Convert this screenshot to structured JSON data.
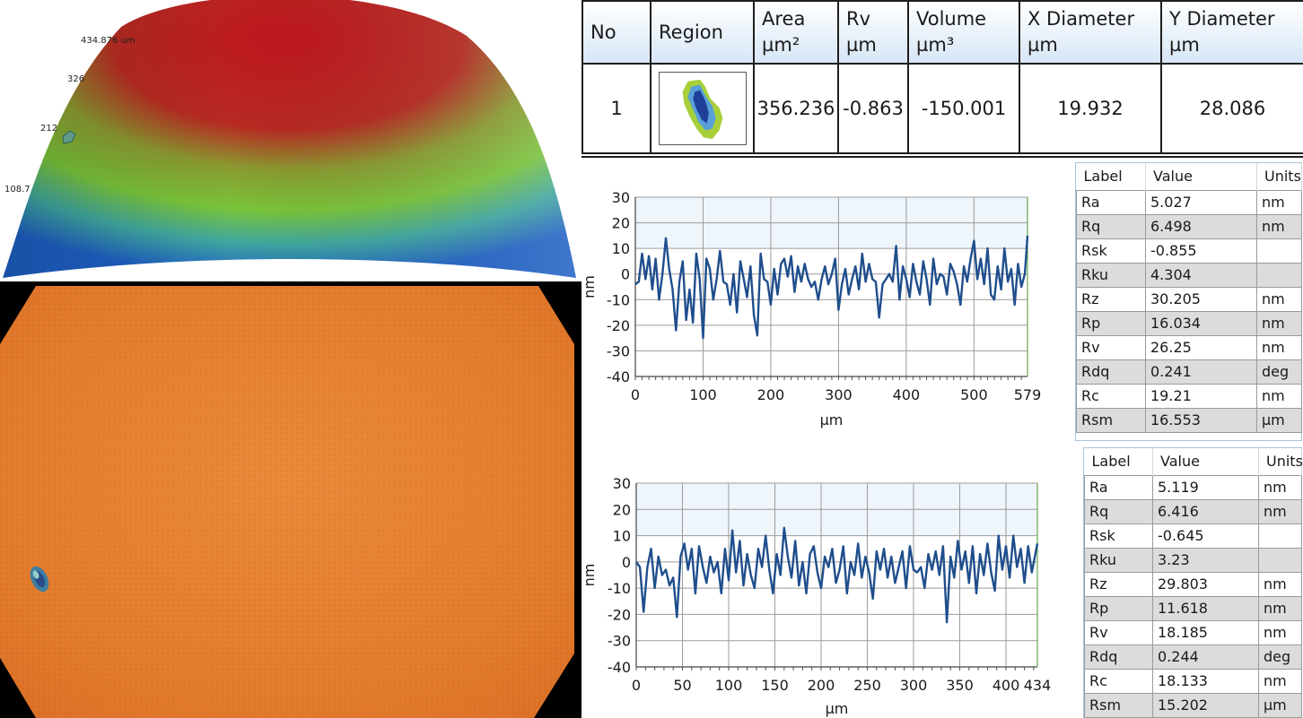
{
  "view3d": {
    "axis_labels": [
      "434.876 um",
      "326",
      "212",
      "108.7"
    ]
  },
  "region_table": {
    "headers": [
      {
        "line1": "No",
        "line2": ""
      },
      {
        "line1": "Region",
        "line2": ""
      },
      {
        "line1": "Area",
        "line2": "µm²"
      },
      {
        "line1": "Rv",
        "line2": "µm"
      },
      {
        "line1": "Volume",
        "line2": "µm³"
      },
      {
        "line1": "X Diameter",
        "line2": "µm"
      },
      {
        "line1": "Y Diameter",
        "line2": "µm"
      }
    ],
    "row": {
      "no": "1",
      "area": "356.236",
      "rv": "-0.863",
      "volume": "-150.001",
      "x_diameter": "19.932",
      "y_diameter": "28.086"
    }
  },
  "profiles": [
    {
      "xlabel": "µm",
      "ylabel": "nm",
      "ylim": [
        -40,
        30
      ],
      "yticks": [
        "30",
        "20",
        "10",
        "0",
        "-10",
        "-20",
        "-30",
        "-40"
      ],
      "xlim": [
        0,
        579
      ],
      "xticks": [
        "0",
        "100",
        "200",
        "300",
        "400",
        "500",
        "579"
      ],
      "xtick_values": [
        0,
        100,
        200,
        300,
        400,
        500,
        579
      ],
      "stats": {
        "headers": [
          "Label",
          "Value",
          "Units"
        ],
        "rows": [
          {
            "label": "Ra",
            "value": "5.027",
            "unit": "nm"
          },
          {
            "label": "Rq",
            "value": "6.498",
            "unit": "nm"
          },
          {
            "label": "Rsk",
            "value": "-0.855",
            "unit": ""
          },
          {
            "label": "Rku",
            "value": "4.304",
            "unit": ""
          },
          {
            "label": "Rz",
            "value": "30.205",
            "unit": "nm"
          },
          {
            "label": "Rp",
            "value": "16.034",
            "unit": "nm"
          },
          {
            "label": "Rv",
            "value": "26.25",
            "unit": "nm"
          },
          {
            "label": "Rdq",
            "value": "0.241",
            "unit": "deg"
          },
          {
            "label": "Rc",
            "value": "19.21",
            "unit": "nm"
          },
          {
            "label": "Rsm",
            "value": "16.553",
            "unit": "µm"
          }
        ]
      }
    },
    {
      "xlabel": "µm",
      "ylabel": "nm",
      "ylim": [
        -40,
        30
      ],
      "yticks": [
        "30",
        "20",
        "10",
        "0",
        "-10",
        "-20",
        "-30",
        "-40"
      ],
      "xlim": [
        0,
        434
      ],
      "xticks": [
        "0",
        "50",
        "100",
        "150",
        "200",
        "250",
        "300",
        "350",
        "400",
        "434"
      ],
      "xtick_values": [
        0,
        50,
        100,
        150,
        200,
        250,
        300,
        350,
        400,
        434
      ],
      "stats": {
        "headers": [
          "Label",
          "Value",
          "Units"
        ],
        "rows": [
          {
            "label": "Ra",
            "value": "5.119",
            "unit": "nm"
          },
          {
            "label": "Rq",
            "value": "6.416",
            "unit": "nm"
          },
          {
            "label": "Rsk",
            "value": "-0.645",
            "unit": ""
          },
          {
            "label": "Rku",
            "value": "3.23",
            "unit": ""
          },
          {
            "label": "Rz",
            "value": "29.803",
            "unit": "nm"
          },
          {
            "label": "Rp",
            "value": "11.618",
            "unit": "nm"
          },
          {
            "label": "Rv",
            "value": "18.185",
            "unit": "nm"
          },
          {
            "label": "Rdq",
            "value": "0.244",
            "unit": "deg"
          },
          {
            "label": "Rc",
            "value": "18.133",
            "unit": "nm"
          },
          {
            "label": "Rsm",
            "value": "15.202",
            "unit": "µm"
          }
        ]
      }
    }
  ],
  "chart_data": [
    {
      "type": "line",
      "xlabel": "µm",
      "ylabel": "nm",
      "xlim": [
        0,
        579
      ],
      "ylim": [
        -40,
        30
      ],
      "grid": true,
      "series": [
        {
          "color": "#1f4e8c",
          "x": [
            0,
            5,
            10,
            15,
            20,
            25,
            30,
            35,
            40,
            45,
            50,
            55,
            60,
            65,
            70,
            75,
            80,
            85,
            90,
            95,
            100,
            105,
            110,
            115,
            120,
            125,
            130,
            135,
            140,
            145,
            150,
            155,
            160,
            165,
            170,
            175,
            180,
            185,
            190,
            195,
            200,
            205,
            210,
            215,
            220,
            225,
            230,
            235,
            240,
            245,
            250,
            255,
            260,
            265,
            270,
            275,
            280,
            285,
            290,
            295,
            300,
            305,
            310,
            315,
            320,
            325,
            330,
            335,
            340,
            345,
            350,
            355,
            360,
            365,
            370,
            375,
            380,
            385,
            390,
            395,
            400,
            405,
            410,
            415,
            420,
            425,
            430,
            435,
            440,
            445,
            450,
            455,
            460,
            465,
            470,
            475,
            480,
            485,
            490,
            495,
            500,
            505,
            510,
            515,
            520,
            525,
            530,
            535,
            540,
            545,
            550,
            555,
            560,
            565,
            570,
            575,
            579
          ],
          "y": [
            -4,
            -3,
            8,
            -2,
            7,
            -6,
            6,
            -10,
            0,
            14,
            2,
            -6,
            -22,
            -3,
            5,
            -18,
            -6,
            -19,
            8,
            -2,
            -25,
            6,
            2,
            -10,
            -2,
            9,
            -3,
            -4,
            -12,
            0,
            -15,
            5,
            -2,
            -9,
            3,
            -16,
            -24,
            8,
            -2,
            -3,
            -12,
            2,
            -8,
            4,
            6,
            -1,
            7,
            -7,
            3,
            -3,
            4,
            -2,
            -5,
            -3,
            -10,
            -2,
            3,
            -4,
            0,
            6,
            -14,
            -4,
            2,
            -8,
            -2,
            3,
            -6,
            8,
            -3,
            4,
            -2,
            -3,
            -17,
            -4,
            -2,
            0,
            -3,
            11,
            -10,
            3,
            -2,
            -9,
            4,
            -3,
            -8,
            5,
            -2,
            -12,
            6,
            -4,
            0,
            -1,
            -8,
            4,
            1,
            -4,
            -12,
            3,
            -3,
            6,
            13,
            -2,
            6,
            -4,
            10,
            -8,
            -10,
            3,
            -6,
            10,
            -3,
            2,
            -12,
            4,
            -5,
            0,
            15
          ]
        }
      ]
    },
    {
      "type": "line",
      "xlabel": "µm",
      "ylabel": "nm",
      "xlim": [
        0,
        434
      ],
      "ylim": [
        -40,
        30
      ],
      "grid": true,
      "series": [
        {
          "color": "#1f4e8c",
          "x": [
            0,
            4,
            8,
            12,
            16,
            20,
            24,
            28,
            32,
            36,
            40,
            44,
            48,
            52,
            56,
            60,
            64,
            68,
            72,
            76,
            80,
            84,
            88,
            92,
            96,
            100,
            104,
            108,
            112,
            116,
            120,
            124,
            128,
            132,
            136,
            140,
            144,
            148,
            152,
            156,
            160,
            164,
            168,
            172,
            176,
            180,
            184,
            188,
            192,
            196,
            200,
            204,
            208,
            212,
            216,
            220,
            224,
            228,
            232,
            236,
            240,
            244,
            248,
            252,
            256,
            260,
            264,
            268,
            272,
            276,
            280,
            284,
            288,
            292,
            296,
            300,
            304,
            308,
            312,
            316,
            320,
            324,
            328,
            332,
            336,
            340,
            344,
            348,
            352,
            356,
            360,
            364,
            368,
            372,
            376,
            380,
            384,
            388,
            392,
            396,
            400,
            404,
            408,
            412,
            416,
            420,
            424,
            428,
            434
          ],
          "y": [
            0,
            -2,
            -19,
            -2,
            5,
            -10,
            2,
            -5,
            -3,
            -9,
            -6,
            -21,
            2,
            7,
            -3,
            5,
            -12,
            6,
            -2,
            -8,
            2,
            -4,
            0,
            -12,
            5,
            -7,
            12,
            -4,
            8,
            -9,
            3,
            -5,
            -10,
            5,
            -2,
            10,
            -3,
            -12,
            3,
            -5,
            13,
            2,
            -6,
            8,
            -9,
            0,
            -12,
            3,
            6,
            -4,
            -10,
            2,
            -2,
            5,
            -8,
            -3,
            6,
            -12,
            0,
            -5,
            7,
            -6,
            2,
            -4,
            -14,
            4,
            -3,
            5,
            -6,
            2,
            -8,
            -2,
            4,
            -10,
            6,
            -3,
            -4,
            -2,
            -10,
            3,
            -3,
            4,
            -5,
            6,
            -23,
            2,
            -6,
            8,
            -3,
            4,
            -8,
            6,
            -12,
            3,
            -5,
            7,
            -4,
            -11,
            10,
            -3,
            6,
            -6,
            10,
            -2,
            5,
            -8,
            6,
            -4,
            7
          ]
        }
      ]
    }
  ]
}
